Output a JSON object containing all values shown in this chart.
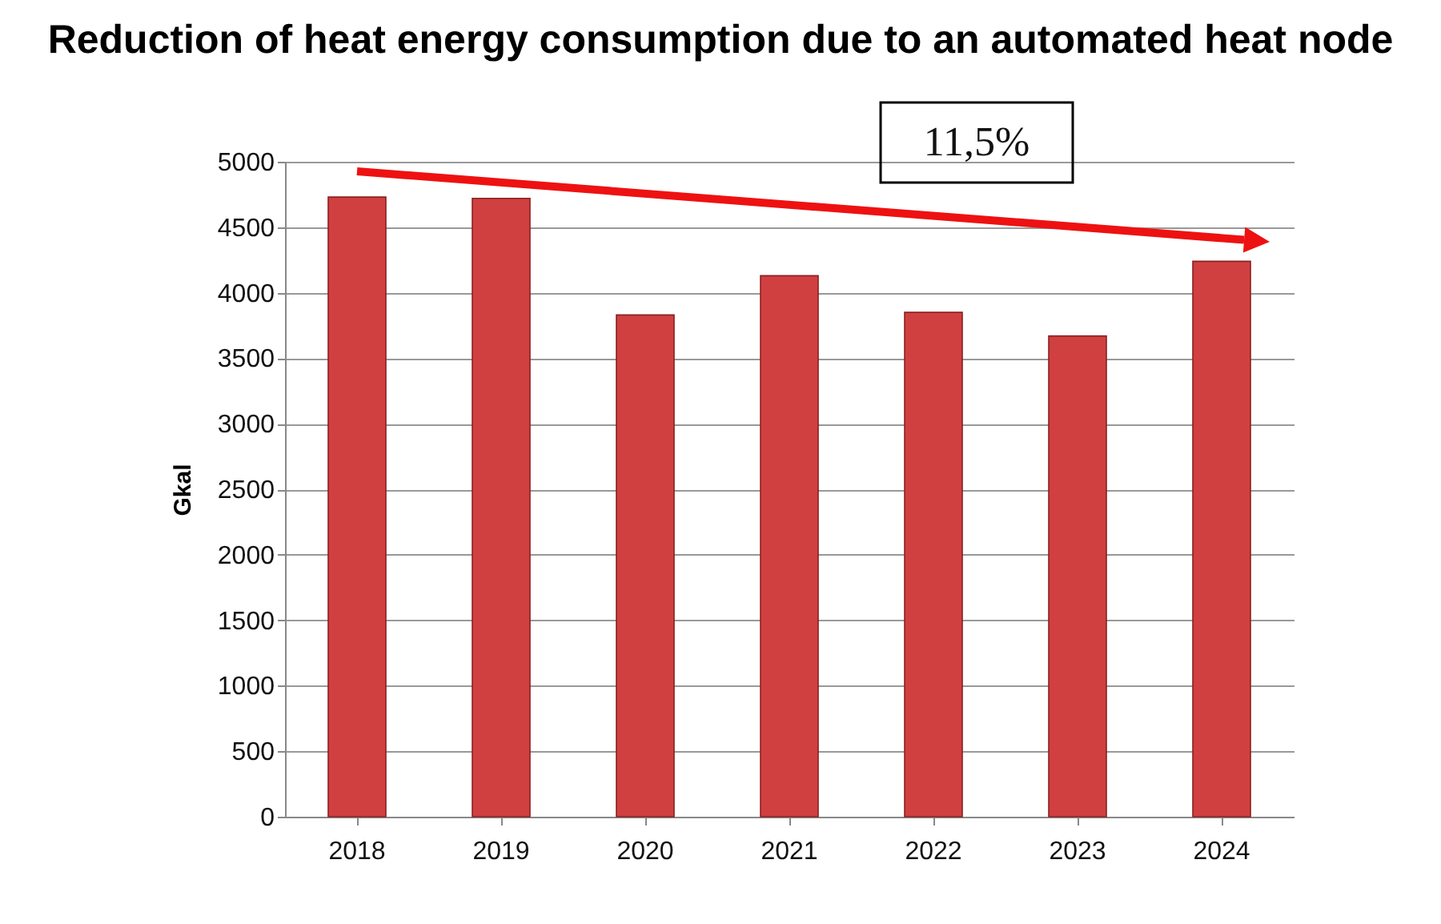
{
  "chart_data": {
    "type": "bar",
    "title": "Reduction of heat energy consumption due to an automated heat node",
    "ylabel": "Gkal",
    "categories": [
      "2018",
      "2019",
      "2020",
      "2021",
      "2022",
      "2023",
      "2024"
    ],
    "values": [
      4730,
      4720,
      3830,
      4130,
      3850,
      3670,
      4240
    ],
    "color": "#d04040",
    "ylim": [
      0,
      5000
    ],
    "yticks": [
      0,
      500,
      1000,
      1500,
      2000,
      2500,
      3000,
      3500,
      4000,
      4500,
      5000
    ],
    "grid": "y",
    "annotations": [
      "11,5%"
    ]
  }
}
